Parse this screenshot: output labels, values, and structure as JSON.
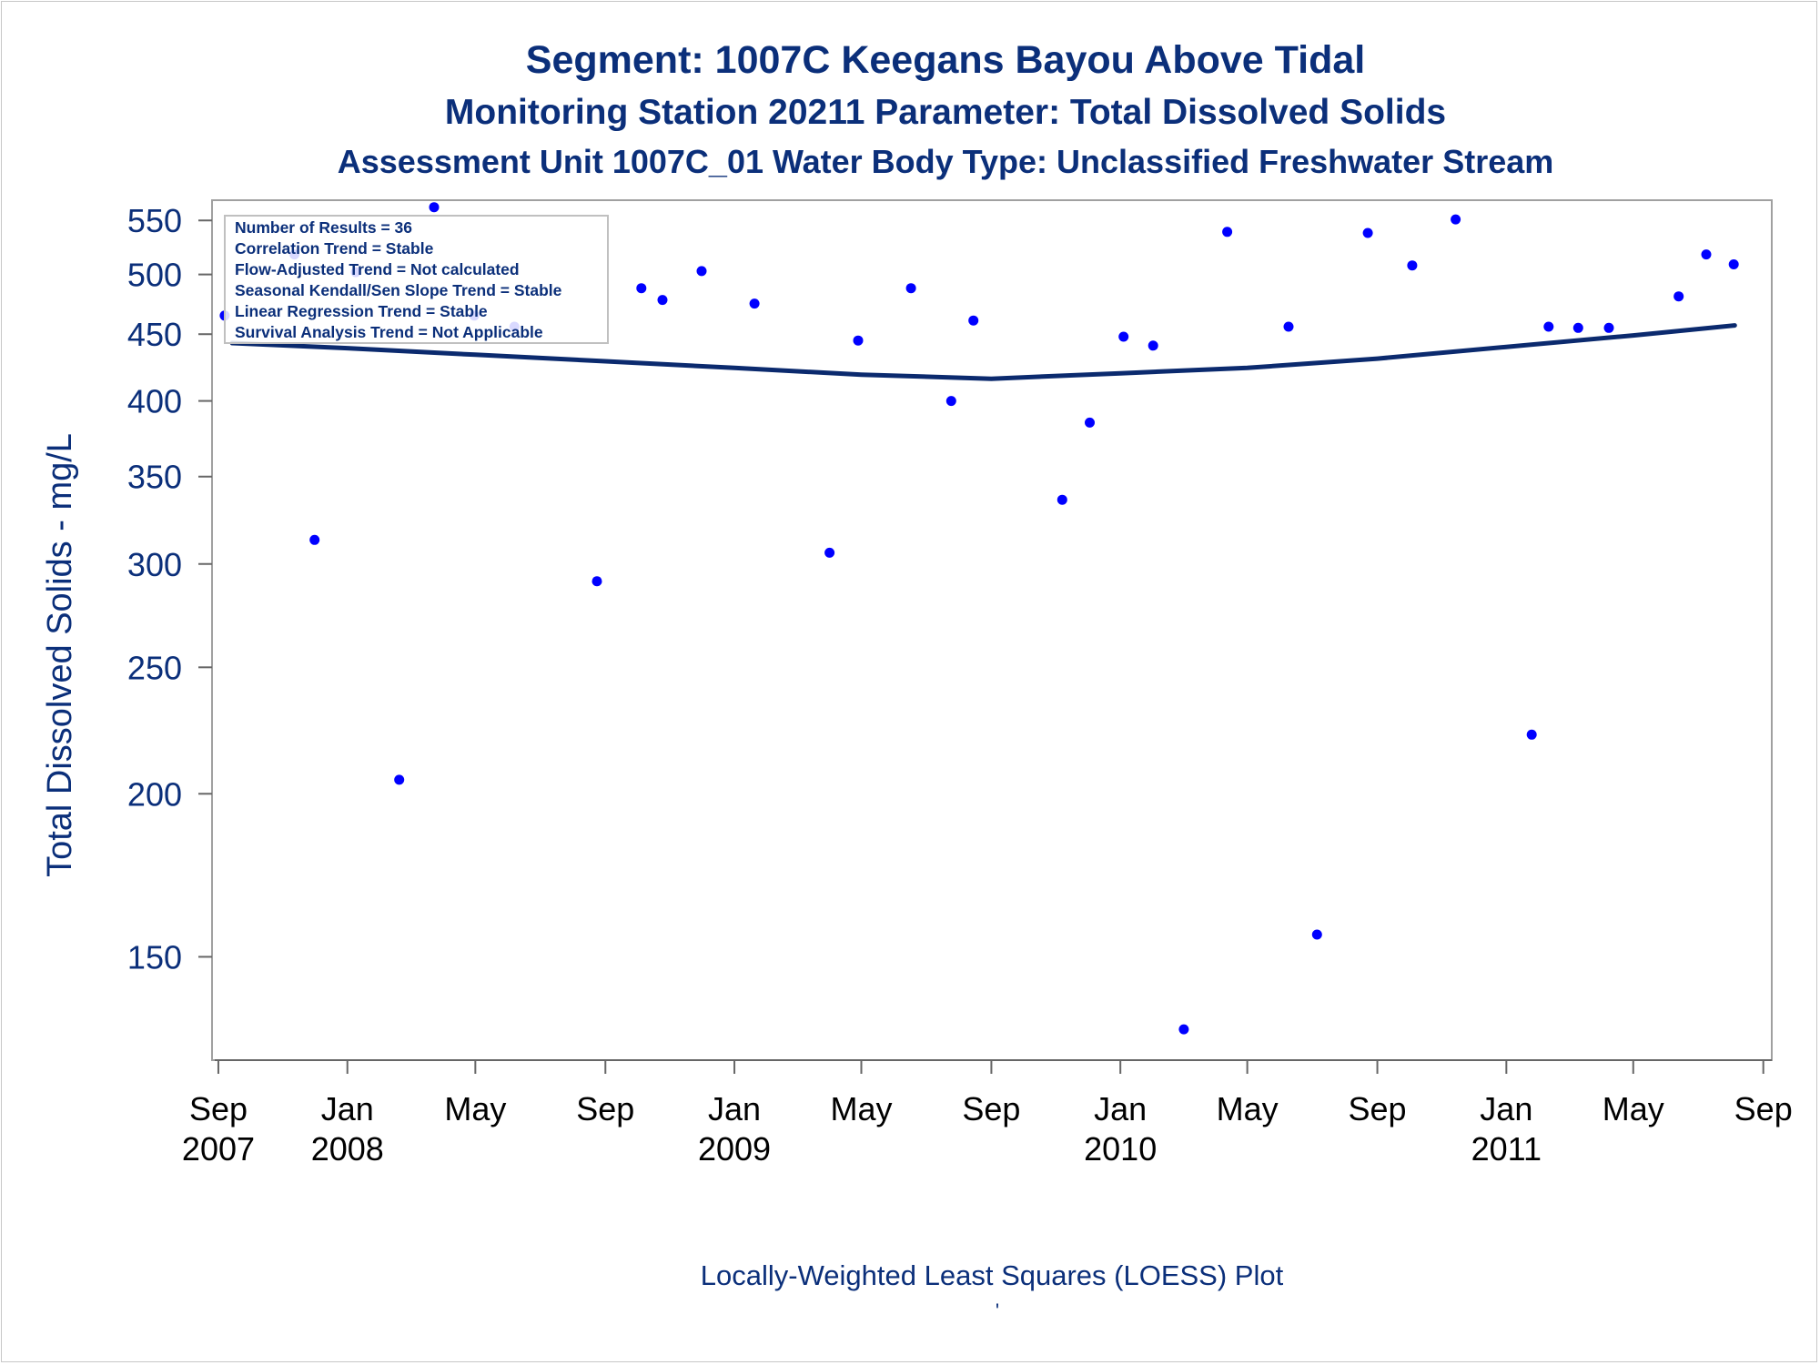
{
  "titles": {
    "line1": "Segment: 1007C  Keegans Bayou Above Tidal",
    "line2": "Monitoring Station 20211 Parameter: Total Dissolved Solids",
    "line3": "Assessment Unit 1007C_01   Water Body Type: Unclassified Freshwater Stream"
  },
  "stats_box": [
    "Number of Results = 36",
    "Correlation Trend = Stable",
    "Flow-Adjusted Trend = Not calculated",
    "Seasonal Kendall/Sen Slope Trend = Stable",
    "Linear Regression Trend = Stable",
    "Survival Analysis Trend = Not Applicable"
  ],
  "footnote": "Locally-Weighted Least Squares (LOESS) Plot",
  "colors": {
    "title": "#0b2f7a",
    "points": "#0000ff",
    "loess": "#0b2a6e",
    "frame": "#a0a0a0"
  },
  "chart_data": {
    "type": "scatter",
    "ylabel": "Total Dissolved Solids - mg/L",
    "xlabel": "",
    "y_scale": "log",
    "ylim": [
      125,
      570
    ],
    "xlim": [
      "2007-08-26",
      "2011-09-09"
    ],
    "y_ticks": [
      150,
      200,
      250,
      300,
      350,
      400,
      450,
      500,
      550
    ],
    "x_ticks": [
      {
        "date": "2007-09-01",
        "label": "Sep",
        "year": "2007"
      },
      {
        "date": "2008-01-01",
        "label": "Jan",
        "year": "2008"
      },
      {
        "date": "2008-05-01",
        "label": "May",
        "year": ""
      },
      {
        "date": "2008-09-01",
        "label": "Sep",
        "year": ""
      },
      {
        "date": "2009-01-01",
        "label": "Jan",
        "year": "2009"
      },
      {
        "date": "2009-05-01",
        "label": "May",
        "year": ""
      },
      {
        "date": "2009-09-01",
        "label": "Sep",
        "year": ""
      },
      {
        "date": "2010-01-01",
        "label": "Jan",
        "year": "2010"
      },
      {
        "date": "2010-05-01",
        "label": "May",
        "year": ""
      },
      {
        "date": "2010-09-01",
        "label": "Sep",
        "year": ""
      },
      {
        "date": "2011-01-01",
        "label": "Jan",
        "year": "2011"
      },
      {
        "date": "2011-05-01",
        "label": "May",
        "year": ""
      },
      {
        "date": "2011-09-01",
        "label": "Sep",
        "year": ""
      }
    ],
    "series": [
      {
        "type": "scatter",
        "points": [
          {
            "x": "2007-09-07",
            "y": 465
          },
          {
            "x": "2007-11-12",
            "y": 518
          },
          {
            "x": "2007-12-01",
            "y": 313
          },
          {
            "x": "2008-01-09",
            "y": 502
          },
          {
            "x": "2008-02-19",
            "y": 205
          },
          {
            "x": "2008-03-23",
            "y": 563
          },
          {
            "x": "2008-04-30",
            "y": 465
          },
          {
            "x": "2008-06-07",
            "y": 456
          },
          {
            "x": "2008-08-24",
            "y": 291
          },
          {
            "x": "2008-10-05",
            "y": 488
          },
          {
            "x": "2008-10-25",
            "y": 478
          },
          {
            "x": "2008-12-01",
            "y": 503
          },
          {
            "x": "2009-01-20",
            "y": 475
          },
          {
            "x": "2009-04-01",
            "y": 306
          },
          {
            "x": "2009-04-28",
            "y": 445
          },
          {
            "x": "2009-06-17",
            "y": 488
          },
          {
            "x": "2009-07-25",
            "y": 400
          },
          {
            "x": "2009-08-15",
            "y": 461
          },
          {
            "x": "2009-11-07",
            "y": 336
          },
          {
            "x": "2009-12-03",
            "y": 385
          },
          {
            "x": "2010-01-04",
            "y": 448
          },
          {
            "x": "2010-02-01",
            "y": 441
          },
          {
            "x": "2010-03-02",
            "y": 132
          },
          {
            "x": "2010-04-12",
            "y": 539
          },
          {
            "x": "2010-06-09",
            "y": 456
          },
          {
            "x": "2010-07-06",
            "y": 156
          },
          {
            "x": "2010-08-23",
            "y": 538
          },
          {
            "x": "2010-10-04",
            "y": 508
          },
          {
            "x": "2010-11-14",
            "y": 551
          },
          {
            "x": "2011-01-25",
            "y": 222
          },
          {
            "x": "2011-02-10",
            "y": 456
          },
          {
            "x": "2011-03-10",
            "y": 455
          },
          {
            "x": "2011-04-08",
            "y": 455
          },
          {
            "x": "2011-06-13",
            "y": 481
          },
          {
            "x": "2011-07-09",
            "y": 518
          },
          {
            "x": "2011-08-04",
            "y": 509
          }
        ]
      },
      {
        "type": "line",
        "points": [
          {
            "x": "2007-09-14",
            "y": 443
          },
          {
            "x": "2008-01-01",
            "y": 439
          },
          {
            "x": "2008-05-01",
            "y": 434
          },
          {
            "x": "2008-09-01",
            "y": 429
          },
          {
            "x": "2009-01-01",
            "y": 424
          },
          {
            "x": "2009-05-01",
            "y": 419
          },
          {
            "x": "2009-09-01",
            "y": 416
          },
          {
            "x": "2010-01-01",
            "y": 420
          },
          {
            "x": "2010-05-01",
            "y": 424
          },
          {
            "x": "2010-09-01",
            "y": 431
          },
          {
            "x": "2011-01-01",
            "y": 440
          },
          {
            "x": "2011-05-01",
            "y": 449
          },
          {
            "x": "2011-08-05",
            "y": 457
          }
        ]
      }
    ]
  }
}
